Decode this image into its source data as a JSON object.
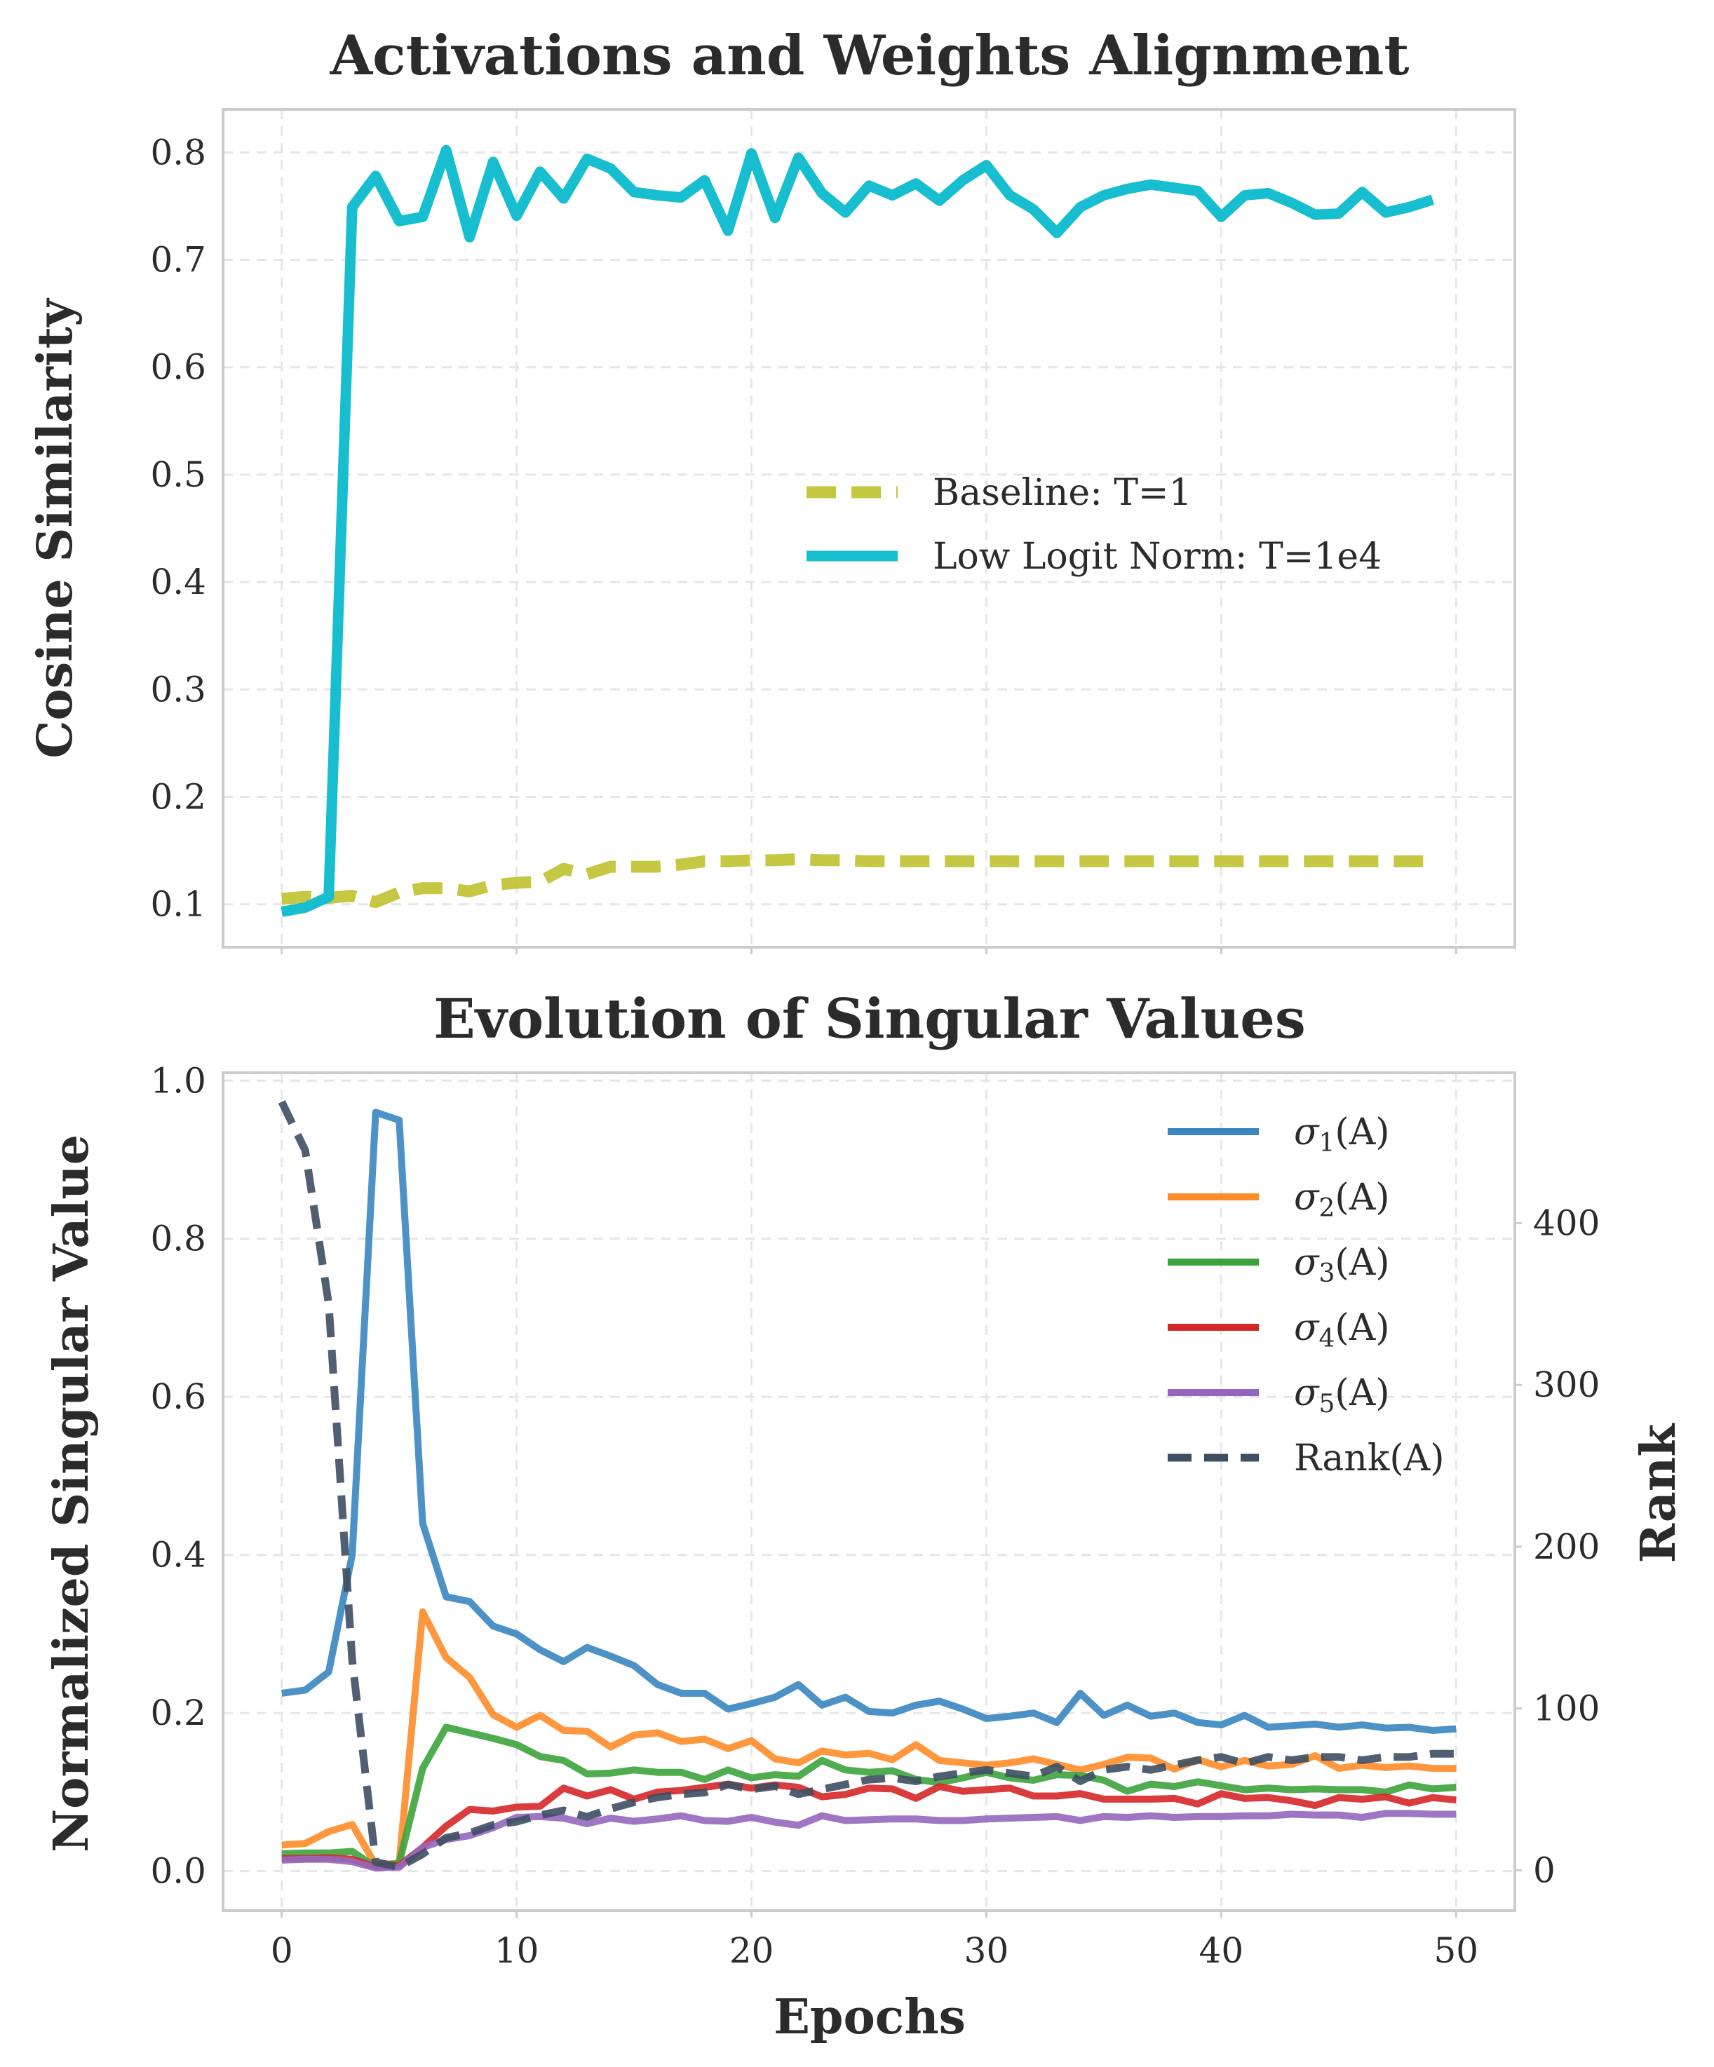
{
  "chart_data": [
    {
      "type": "line",
      "title": "Activations and Weights Alignment",
      "xlabel": "",
      "ylabel": "Cosine Similarity",
      "xlim": [
        -2.5,
        52.5
      ],
      "ylim": [
        0.06,
        0.84
      ],
      "xticks": [
        0,
        10,
        20,
        30,
        40,
        50
      ],
      "yticks": [
        0.1,
        0.2,
        0.3,
        0.4,
        0.5,
        0.6,
        0.7,
        0.8
      ],
      "yticklabels": [
        "0.1",
        "0.2",
        "0.3",
        "0.4",
        "0.5",
        "0.6",
        "0.7",
        "0.8"
      ],
      "legend_position": "center-right",
      "x": [
        0,
        1,
        2,
        3,
        4,
        5,
        6,
        7,
        8,
        9,
        10,
        11,
        12,
        13,
        14,
        15,
        16,
        17,
        18,
        19,
        20,
        21,
        22,
        23,
        24,
        25,
        26,
        27,
        28,
        29,
        30,
        31,
        32,
        33,
        34,
        35,
        36,
        37,
        38,
        39,
        40,
        41,
        42,
        43,
        44,
        45,
        46,
        47,
        48,
        49
      ],
      "series": [
        {
          "name": "Baseline: T=1",
          "color": "#bcbd22",
          "style": "dashed",
          "values": [
            0.105,
            0.107,
            0.106,
            0.108,
            0.102,
            0.111,
            0.115,
            0.115,
            0.112,
            0.118,
            0.12,
            0.121,
            0.133,
            0.128,
            0.135,
            0.135,
            0.135,
            0.137,
            0.14,
            0.14,
            0.141,
            0.141,
            0.142,
            0.141,
            0.141,
            0.14,
            0.14,
            0.14,
            0.14,
            0.14,
            0.14,
            0.14,
            0.14,
            0.14,
            0.14,
            0.14,
            0.14,
            0.14,
            0.14,
            0.14,
            0.14,
            0.14,
            0.14,
            0.14,
            0.14,
            0.14,
            0.14,
            0.14,
            0.14,
            0.14
          ]
        },
        {
          "name": "Low Logit Norm: T=1e4",
          "color": "#17becf",
          "style": "solid",
          "values": [
            0.093,
            0.097,
            0.107,
            0.749,
            0.778,
            0.736,
            0.74,
            0.802,
            0.721,
            0.791,
            0.741,
            0.782,
            0.757,
            0.794,
            0.785,
            0.763,
            0.76,
            0.758,
            0.774,
            0.727,
            0.799,
            0.739,
            0.795,
            0.762,
            0.744,
            0.769,
            0.76,
            0.771,
            0.755,
            0.774,
            0.788,
            0.76,
            0.747,
            0.725,
            0.749,
            0.76,
            0.766,
            0.77,
            0.767,
            0.764,
            0.74,
            0.76,
            0.762,
            0.753,
            0.742,
            0.743,
            0.763,
            0.744,
            0.749,
            0.756
          ]
        }
      ]
    },
    {
      "type": "line",
      "title": "Evolution of Singular Values",
      "xlabel": "Epochs",
      "ylabel": "Normalized Singular Value",
      "y2label": "Rank",
      "xlim": [
        -2.5,
        52.5
      ],
      "ylim": [
        -0.05,
        1.01
      ],
      "y2lim": [
        -25,
        493
      ],
      "xticks": [
        0,
        10,
        20,
        30,
        40,
        50
      ],
      "xticklabels": [
        "0",
        "10",
        "20",
        "30",
        "40",
        "50"
      ],
      "yticks": [
        0.0,
        0.2,
        0.4,
        0.6,
        0.8,
        1.0
      ],
      "yticklabels": [
        "0.0",
        "0.2",
        "0.4",
        "0.6",
        "0.8",
        "1.0"
      ],
      "y2ticks": [
        0,
        100,
        200,
        300,
        400
      ],
      "y2ticklabels": [
        "0",
        "100",
        "200",
        "300",
        "400"
      ],
      "legend_position": "top-right",
      "x": [
        0,
        1,
        2,
        3,
        4,
        5,
        6,
        7,
        8,
        9,
        10,
        11,
        12,
        13,
        14,
        15,
        16,
        17,
        18,
        19,
        20,
        21,
        22,
        23,
        24,
        25,
        26,
        27,
        28,
        29,
        30,
        31,
        32,
        33,
        34,
        35,
        36,
        37,
        38,
        39,
        40,
        41,
        42,
        43,
        44,
        45,
        46,
        47,
        48,
        49,
        50
      ],
      "series": [
        {
          "name": "σ",
          "sub": "1",
          "suffix": "(A)",
          "axis": "left",
          "color": "#3a86c0",
          "style": "solid",
          "values": [
            0.225,
            0.229,
            0.252,
            0.4,
            0.96,
            0.95,
            0.44,
            0.347,
            0.341,
            0.31,
            0.3,
            0.28,
            0.265,
            0.283,
            0.272,
            0.26,
            0.236,
            0.225,
            0.225,
            0.205,
            0.212,
            0.22,
            0.236,
            0.21,
            0.22,
            0.202,
            0.2,
            0.21,
            0.215,
            0.205,
            0.193,
            0.196,
            0.2,
            0.188,
            0.225,
            0.197,
            0.21,
            0.196,
            0.2,
            0.188,
            0.185,
            0.197,
            0.182,
            0.184,
            0.186,
            0.182,
            0.185,
            0.181,
            0.182,
            0.178,
            0.18
          ]
        },
        {
          "name": "σ",
          "sub": "2",
          "suffix": "(A)",
          "axis": "left",
          "color": "#ff8c29",
          "style": "solid",
          "values": [
            0.033,
            0.035,
            0.05,
            0.059,
            0.008,
            0.01,
            0.328,
            0.27,
            0.245,
            0.198,
            0.182,
            0.197,
            0.178,
            0.177,
            0.157,
            0.172,
            0.175,
            0.164,
            0.167,
            0.155,
            0.165,
            0.142,
            0.137,
            0.152,
            0.147,
            0.149,
            0.141,
            0.16,
            0.14,
            0.137,
            0.134,
            0.137,
            0.142,
            0.135,
            0.128,
            0.135,
            0.144,
            0.143,
            0.129,
            0.141,
            0.132,
            0.14,
            0.133,
            0.135,
            0.146,
            0.13,
            0.134,
            0.131,
            0.133,
            0.13,
            0.13
          ]
        },
        {
          "name": "σ",
          "sub": "3",
          "suffix": "(A)",
          "axis": "left",
          "color": "#3ca33c",
          "style": "solid",
          "values": [
            0.022,
            0.023,
            0.023,
            0.025,
            0.005,
            0.01,
            0.13,
            0.182,
            0.175,
            0.168,
            0.16,
            0.145,
            0.14,
            0.123,
            0.124,
            0.128,
            0.125,
            0.125,
            0.116,
            0.128,
            0.118,
            0.122,
            0.12,
            0.14,
            0.128,
            0.125,
            0.127,
            0.116,
            0.112,
            0.118,
            0.125,
            0.118,
            0.115,
            0.122,
            0.121,
            0.115,
            0.101,
            0.11,
            0.107,
            0.113,
            0.108,
            0.103,
            0.105,
            0.103,
            0.104,
            0.103,
            0.103,
            0.1,
            0.109,
            0.104,
            0.106
          ]
        },
        {
          "name": "σ",
          "sub": "4",
          "suffix": "(A)",
          "axis": "left",
          "color": "#d62728",
          "style": "solid",
          "values": [
            0.016,
            0.016,
            0.017,
            0.015,
            0.005,
            0.007,
            0.03,
            0.057,
            0.078,
            0.076,
            0.081,
            0.082,
            0.105,
            0.095,
            0.103,
            0.091,
            0.1,
            0.102,
            0.106,
            0.11,
            0.105,
            0.109,
            0.106,
            0.094,
            0.097,
            0.105,
            0.104,
            0.092,
            0.107,
            0.101,
            0.103,
            0.105,
            0.095,
            0.095,
            0.098,
            0.091,
            0.091,
            0.091,
            0.092,
            0.085,
            0.098,
            0.092,
            0.093,
            0.089,
            0.083,
            0.093,
            0.091,
            0.094,
            0.086,
            0.093,
            0.09
          ]
        },
        {
          "name": "σ",
          "sub": "5",
          "suffix": "(A)",
          "axis": "left",
          "color": "#9467bd",
          "style": "solid",
          "values": [
            0.014,
            0.015,
            0.015,
            0.012,
            0.004,
            0.005,
            0.03,
            0.04,
            0.045,
            0.055,
            0.068,
            0.069,
            0.067,
            0.06,
            0.067,
            0.063,
            0.066,
            0.07,
            0.064,
            0.063,
            0.068,
            0.062,
            0.058,
            0.07,
            0.064,
            0.065,
            0.066,
            0.066,
            0.064,
            0.064,
            0.066,
            0.067,
            0.068,
            0.069,
            0.064,
            0.069,
            0.068,
            0.07,
            0.068,
            0.069,
            0.069,
            0.07,
            0.07,
            0.072,
            0.071,
            0.071,
            0.068,
            0.073,
            0.073,
            0.072,
            0.072
          ]
        },
        {
          "name": "Rank(A)",
          "axis": "right",
          "color": "#3d4f63",
          "style": "dashed",
          "values": [
            475,
            445,
            350,
            130,
            5,
            2,
            10,
            20,
            23,
            28,
            30,
            34,
            37,
            33,
            38,
            42,
            45,
            47,
            48,
            53,
            50,
            52,
            47,
            50,
            53,
            56,
            57,
            55,
            58,
            60,
            62,
            60,
            58,
            64,
            55,
            62,
            64,
            62,
            65,
            68,
            70,
            66,
            70,
            68,
            70,
            70,
            68,
            70,
            70,
            72,
            72
          ]
        }
      ]
    }
  ]
}
